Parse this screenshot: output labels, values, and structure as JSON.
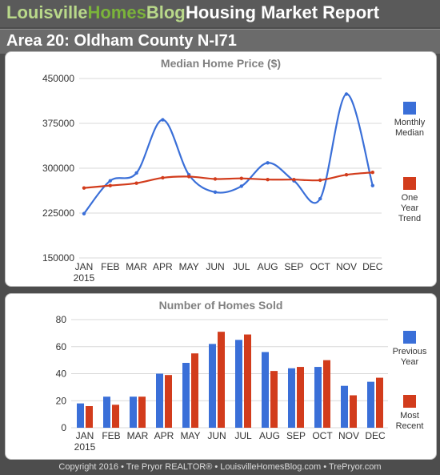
{
  "header": {
    "brand_part1": "Louisville",
    "brand_part2": "Homes",
    "brand_part3": "Blog",
    "report_title": "Housing Market Report"
  },
  "area_title": "Area 20: Oldham County N-I71",
  "footer": "Copyright 2016 • Tre Pryor REALTOR® • LouisvilleHomesBlog.com • TrePryor.com",
  "colors": {
    "blue": "#3a6fd8",
    "red": "#d23c1c",
    "grid": "#d8d8d8",
    "title": "#808080"
  },
  "chart_data": [
    {
      "type": "line",
      "title": "Median Home Price ($)",
      "categories": [
        "JAN",
        "FEB",
        "MAR",
        "APR",
        "MAY",
        "JUN",
        "JUL",
        "AUG",
        "SEP",
        "OCT",
        "NOV",
        "DEC"
      ],
      "year_label": "2015",
      "yticks": [
        "450000",
        "375000",
        "300000",
        "225000",
        "150000"
      ],
      "ylim": [
        150000,
        450000
      ],
      "grid": true,
      "legend_placement": "right",
      "series": [
        {
          "name": "Monthly Median",
          "color": "#3a6fd8",
          "values": [
            224000,
            279000,
            292000,
            381000,
            289000,
            260000,
            270000,
            309000,
            279000,
            249000,
            424000,
            271000
          ]
        },
        {
          "name": "One Year Trend",
          "color": "#d23c1c",
          "values": [
            267000,
            271000,
            275000,
            284000,
            286000,
            282000,
            283000,
            281000,
            281000,
            280000,
            289000,
            293000
          ]
        }
      ]
    },
    {
      "type": "bar",
      "title": "Number of Homes Sold",
      "categories": [
        "JAN",
        "FEB",
        "MAR",
        "APR",
        "MAY",
        "JUN",
        "JUL",
        "AUG",
        "SEP",
        "OCT",
        "NOV",
        "DEC"
      ],
      "year_label": "2015",
      "yticks": [
        "80",
        "60",
        "40",
        "20",
        "0"
      ],
      "ylim": [
        0,
        80
      ],
      "grid": true,
      "legend_placement": "right",
      "series": [
        {
          "name": "Previous Year",
          "color": "#3a6fd8",
          "values": [
            18,
            23,
            23,
            40,
            48,
            62,
            65,
            56,
            44,
            45,
            31,
            34
          ]
        },
        {
          "name": "Most Recent",
          "color": "#d23c1c",
          "values": [
            16,
            17,
            23,
            39,
            55,
            71,
            69,
            42,
            45,
            50,
            24,
            37
          ]
        }
      ]
    }
  ]
}
